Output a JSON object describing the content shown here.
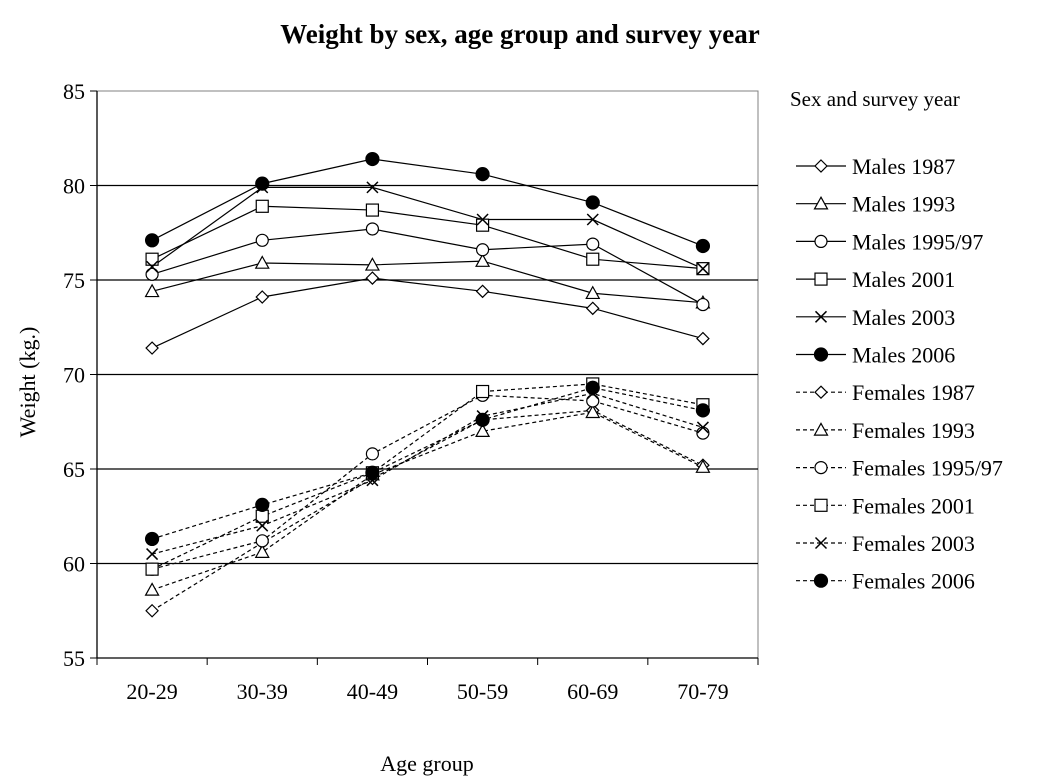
{
  "chart_data": {
    "type": "line",
    "title": "Weight by sex, age group and survey year",
    "xlabel": "Age group",
    "ylabel": "Weight  (kg.)",
    "legend_title": "Sex and survey year",
    "legend_position": "right",
    "grid": "horizontal",
    "ylim": [
      55,
      85
    ],
    "yticks": [
      55,
      60,
      65,
      70,
      75,
      80,
      85
    ],
    "categories": [
      "20-29",
      "30-39",
      "40-49",
      "50-59",
      "60-69",
      "70-79"
    ],
    "series": [
      {
        "name": "Males 1987",
        "marker": "diamond",
        "dash": "solid",
        "values": [
          71.4,
          74.1,
          75.1,
          74.4,
          73.5,
          71.9
        ]
      },
      {
        "name": "Males 1993",
        "marker": "triangle",
        "dash": "solid",
        "values": [
          74.4,
          75.9,
          75.8,
          76.0,
          74.3,
          73.8
        ]
      },
      {
        "name": "Males 1995/97",
        "marker": "circle",
        "dash": "solid",
        "values": [
          75.3,
          77.1,
          77.7,
          76.6,
          76.9,
          73.7
        ]
      },
      {
        "name": "Males 2001",
        "marker": "square",
        "dash": "solid",
        "values": [
          76.1,
          78.9,
          78.7,
          77.9,
          76.1,
          75.6
        ]
      },
      {
        "name": "Males 2003",
        "marker": "x",
        "dash": "solid",
        "values": [
          75.7,
          79.9,
          79.9,
          78.2,
          78.2,
          75.6
        ]
      },
      {
        "name": "Males 2006",
        "marker": "filled-circle",
        "dash": "solid",
        "values": [
          77.1,
          80.1,
          81.4,
          80.6,
          79.1,
          76.8
        ]
      },
      {
        "name": "Females 1987",
        "marker": "diamond",
        "dash": "dashed",
        "values": [
          57.5,
          61.1,
          64.5,
          67.6,
          68.1,
          65.2
        ]
      },
      {
        "name": "Females 1993",
        "marker": "triangle",
        "dash": "dashed",
        "values": [
          58.6,
          60.6,
          64.7,
          67.0,
          68.0,
          65.1
        ]
      },
      {
        "name": "Females 1995/97",
        "marker": "circle",
        "dash": "dashed",
        "values": [
          59.7,
          61.2,
          65.8,
          68.9,
          68.6,
          66.9
        ]
      },
      {
        "name": "Females 2001",
        "marker": "square",
        "dash": "dashed",
        "values": [
          59.7,
          62.5,
          64.8,
          69.1,
          69.5,
          68.4
        ]
      },
      {
        "name": "Females 2003",
        "marker": "x",
        "dash": "dashed",
        "values": [
          60.5,
          62.0,
          64.4,
          67.8,
          69.0,
          67.2
        ]
      },
      {
        "name": "Females 2006",
        "marker": "filled-circle",
        "dash": "dashed",
        "values": [
          61.3,
          63.1,
          64.8,
          67.6,
          69.3,
          68.1
        ]
      }
    ]
  }
}
